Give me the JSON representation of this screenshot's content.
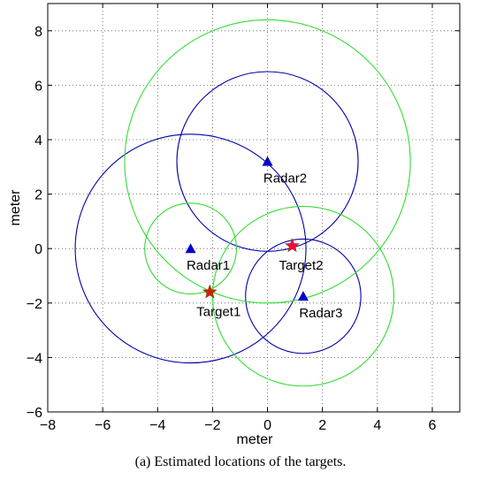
{
  "caption": "(a) Estimated locations of the targets.",
  "chart_data": {
    "type": "scatter",
    "title": "",
    "xlabel": "meter",
    "ylabel": "meter",
    "xlim": [
      -8,
      7
    ],
    "ylim": [
      -6,
      9
    ],
    "xticks": [
      -8,
      -6,
      -4,
      -2,
      0,
      2,
      4,
      6
    ],
    "yticks": [
      -6,
      -4,
      -2,
      0,
      2,
      4,
      6,
      8
    ],
    "grid": true,
    "radars": [
      {
        "label": "Radar1",
        "x": -2.8,
        "y": 0.0
      },
      {
        "label": "Radar2",
        "x": 0.0,
        "y": 3.2
      },
      {
        "label": "Radar3",
        "x": 1.3,
        "y": -1.75
      }
    ],
    "targets": [
      {
        "label": "Target1",
        "x": -2.1,
        "y": -1.6,
        "color": "#cc2200"
      },
      {
        "label": "Target2",
        "x": 0.9,
        "y": 0.1,
        "color": "#ff0044"
      }
    ],
    "circles": [
      {
        "cx": -2.8,
        "cy": 0.0,
        "r": 4.2,
        "color": "#0000aa"
      },
      {
        "cx": 0.0,
        "cy": 3.2,
        "r": 3.3,
        "color": "#0000aa"
      },
      {
        "cx": 1.3,
        "cy": -1.75,
        "r": 2.1,
        "color": "#0000aa"
      },
      {
        "cx": -2.8,
        "cy": 0.0,
        "r": 1.67,
        "color": "#33dd33"
      },
      {
        "cx": 0.0,
        "cy": 3.2,
        "r": 5.2,
        "color": "#33dd33"
      },
      {
        "cx": 1.3,
        "cy": -1.75,
        "r": 3.3,
        "color": "#33dd33"
      }
    ],
    "colors": {
      "radar_marker": "#0000cc",
      "blue_circle": "#0000aa",
      "green_circle": "#33dd33"
    }
  }
}
